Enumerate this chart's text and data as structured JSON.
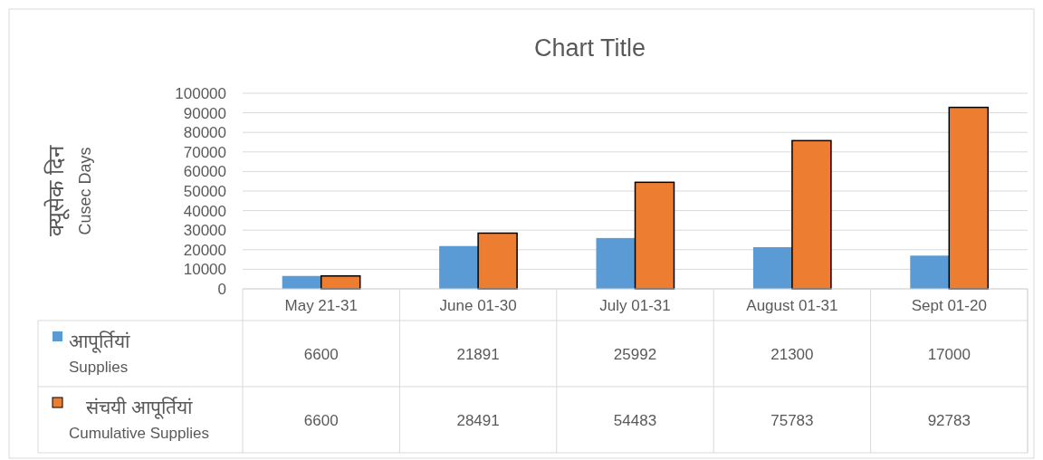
{
  "chart_data": {
    "type": "bar",
    "title": "Chart Title",
    "ylabel": "क्यूसेक दिन\nCusec Days",
    "categories": [
      "May 21-31",
      "June 01-30",
      "July 01-31",
      "August 01-31",
      "Sept 01-20"
    ],
    "series": [
      {
        "name": "आपूर्तियां\nSupplies",
        "color": "#5b9bd5",
        "values": [
          6600,
          21891,
          25992,
          21300,
          17000
        ]
      },
      {
        "name": "संचयी आपूर्तियां\nCumulative Supplies",
        "color": "#ed7d31",
        "values": [
          6600,
          28491,
          54483,
          75783,
          92783
        ]
      }
    ],
    "ylim": [
      0,
      100000
    ],
    "yticks": [
      0,
      10000,
      20000,
      30000,
      40000,
      50000,
      60000,
      70000,
      80000,
      90000,
      100000
    ],
    "grid": "y",
    "legend": "bottom",
    "data_labels": true
  }
}
